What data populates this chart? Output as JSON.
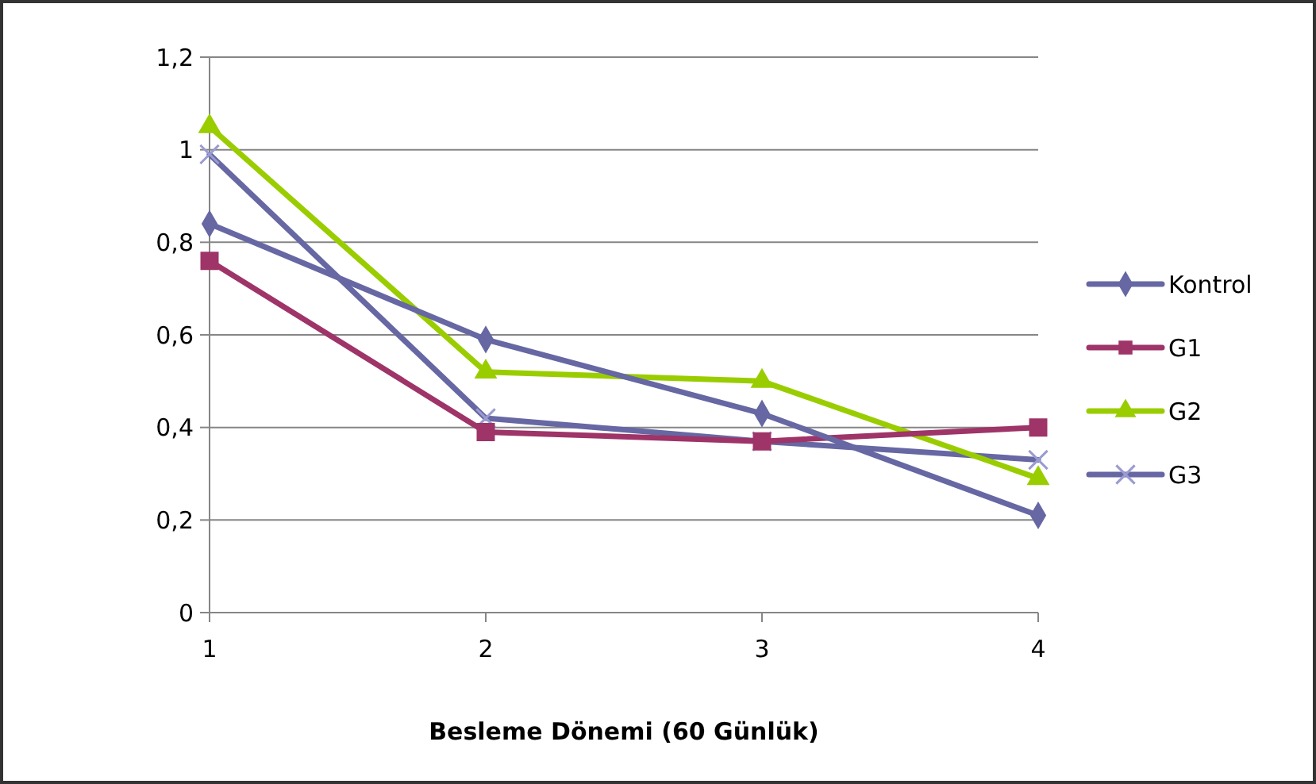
{
  "chart_data": {
    "type": "line",
    "xlabel": "Besleme Dönemi (60 Günlük)",
    "x": [
      1,
      2,
      3,
      4
    ],
    "xlim": [
      1,
      4
    ],
    "xticks": [
      1,
      2,
      3,
      4
    ],
    "ylim": [
      0,
      1.2
    ],
    "yticks": [
      0,
      {
        "value": 0.2,
        "label": "0,2"
      },
      {
        "value": 0.4,
        "label": "0,4"
      },
      {
        "value": 0.6,
        "label": "0,6"
      },
      {
        "value": 0.8,
        "label": "0,8"
      },
      1,
      {
        "value": 1.2,
        "label": "1,2"
      }
    ],
    "grid": "y",
    "legend": "right",
    "series": [
      {
        "name": "Kontrol",
        "color": "#6667a3",
        "marker": "diamond",
        "values": [
          0.84,
          0.59,
          0.43,
          0.21
        ]
      },
      {
        "name": "G1",
        "color": "#9e3468",
        "marker": "square",
        "values": [
          0.76,
          0.39,
          0.37,
          0.4
        ]
      },
      {
        "name": "G2",
        "color": "#9acd00",
        "marker": "triangle",
        "values": [
          1.05,
          0.52,
          0.5,
          0.29
        ]
      },
      {
        "name": "G3",
        "color": "#6667a3",
        "marker": "cross",
        "values": [
          0.99,
          0.42,
          0.37,
          0.33
        ]
      }
    ]
  }
}
